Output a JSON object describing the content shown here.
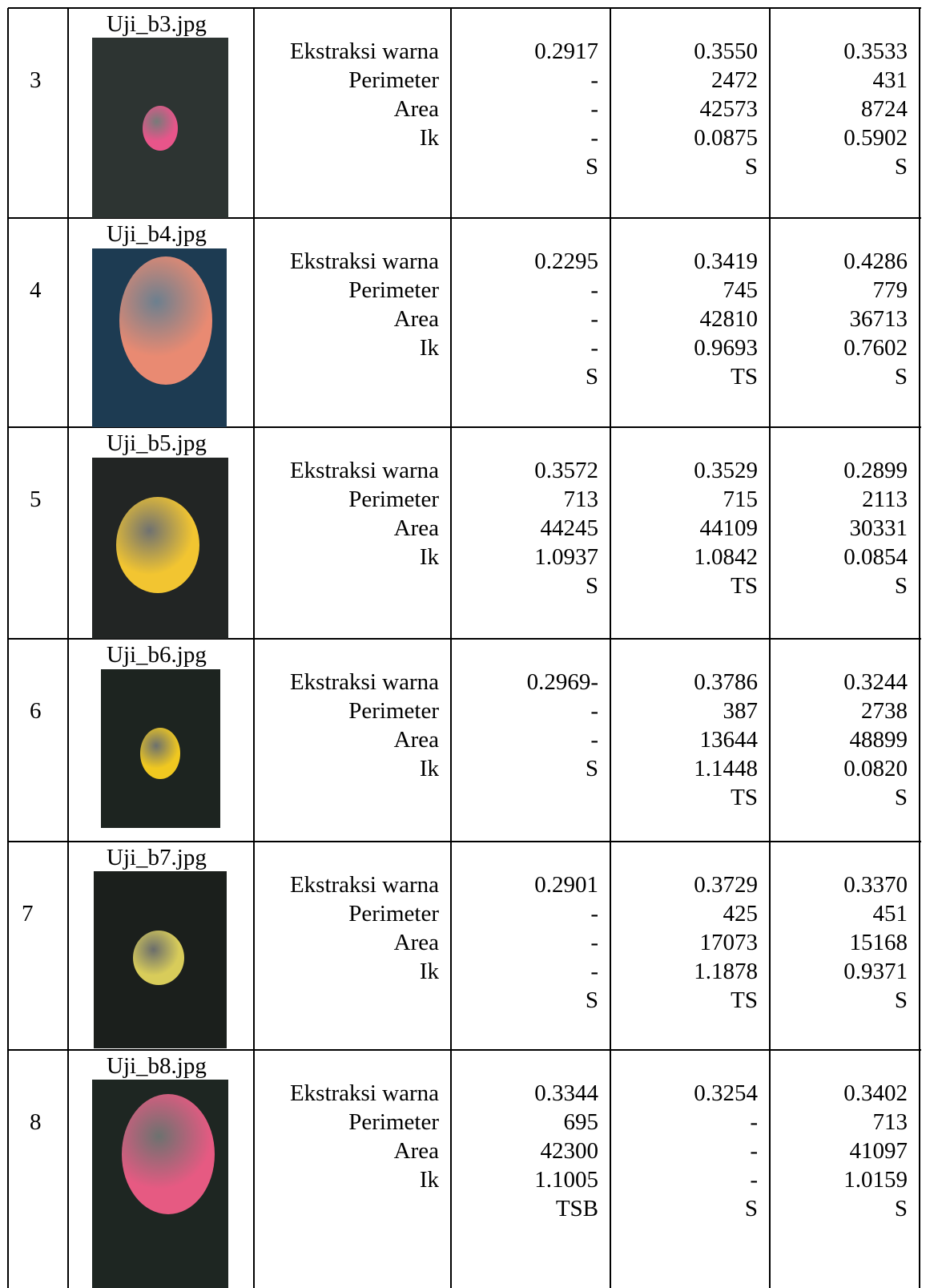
{
  "table": {
    "rows": [
      {
        "no": "3",
        "image": "Uji_b3.jpg",
        "features": [
          "Ekstraksi warna",
          "Perimeter",
          "Area",
          "Ik"
        ],
        "values": [
          [
            "0.2917",
            "-",
            "-",
            "-",
            "S"
          ],
          [
            "0.3550",
            "2472",
            "42573",
            "0.0875",
            "S"
          ],
          [
            "0.3533",
            "431",
            "8724",
            "0.5902",
            "S"
          ]
        ]
      },
      {
        "no": "4",
        "image": "Uji_b4.jpg",
        "features": [
          "Ekstraksi warna",
          "Perimeter",
          "Area",
          "Ik"
        ],
        "values": [
          [
            "0.2295",
            "-",
            "-",
            "-",
            "S"
          ],
          [
            "0.3419",
            "745",
            "42810",
            "0.9693",
            "TS"
          ],
          [
            "0.4286",
            "779",
            "36713",
            "0.7602",
            "S"
          ]
        ]
      },
      {
        "no": "5",
        "image": "Uji_b5.jpg",
        "features": [
          "Ekstraksi warna",
          "Perimeter",
          "Area",
          "Ik"
        ],
        "values": [
          [
            "0.3572",
            "713",
            "44245",
            "1.0937",
            "S"
          ],
          [
            "0.3529",
            "715",
            "44109",
            "1.0842",
            "TS"
          ],
          [
            "0.2899",
            "2113",
            "30331",
            "0.0854",
            "S"
          ]
        ]
      },
      {
        "no": "6",
        "image": "Uji_b6.jpg",
        "features": [
          "Ekstraksi warna",
          "Perimeter",
          "Area",
          "Ik"
        ],
        "values": [
          [
            "0.2969-",
            "-",
            "-",
            "S"
          ],
          [
            "0.3786",
            "387",
            "13644",
            "1.1448",
            "TS"
          ],
          [
            "0.3244",
            "2738",
            "48899",
            "0.0820",
            "S"
          ]
        ]
      },
      {
        "no": "7",
        "image": "Uji_b7.jpg",
        "features": [
          "Ekstraksi warna",
          "Perimeter",
          "Area",
          "Ik"
        ],
        "values": [
          [
            "0.2901",
            "-",
            "-",
            "-",
            "S"
          ],
          [
            "0.3729",
            "425",
            "17073",
            "1.1878",
            "TS"
          ],
          [
            "0.3370",
            "451",
            "15168",
            "0.9371",
            "S"
          ]
        ]
      },
      {
        "no": "8",
        "image": "Uji_b8.jpg",
        "features": [
          "Ekstraksi warna",
          "Perimeter",
          "Area",
          "Ik"
        ],
        "values": [
          [
            "0.3344",
            "695",
            "42300",
            "1.1005",
            "TSB"
          ],
          [
            "0.3254",
            "-",
            "-",
            "-",
            "S"
          ],
          [
            "0.3402",
            "713",
            "41097",
            "1.0159",
            "S"
          ]
        ]
      }
    ]
  }
}
